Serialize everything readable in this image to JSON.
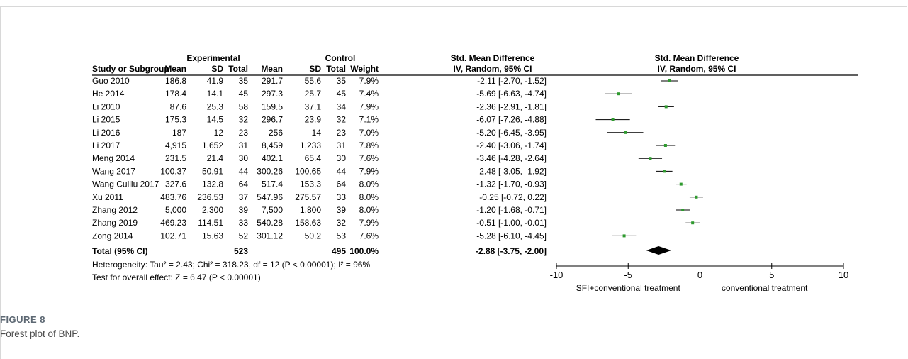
{
  "headers": {
    "group_experimental": "Experimental",
    "group_control": "Control",
    "smd_col_title": "Std. Mean Difference",
    "smd_col_sub": "IV, Random, 95% CI",
    "plot_title": "Std. Mean Difference",
    "plot_sub": "IV, Random, 95% CI",
    "study": "Study or Subgroup",
    "mean": "Mean",
    "sd": "SD",
    "total": "Total",
    "weight": "Weight"
  },
  "chart_data": {
    "type": "forest",
    "studies": [
      {
        "name": "Guo 2010",
        "e_mean": "186.8",
        "e_sd": "41.9",
        "e_total": "35",
        "c_mean": "291.7",
        "c_sd": "55.6",
        "c_total": "35",
        "weight": "7.9%",
        "ci_text": "-2.11 [-2.70, -1.52]",
        "smd": -2.11,
        "lower": -2.7,
        "upper": -1.52,
        "w": 7.9
      },
      {
        "name": "He 2014",
        "e_mean": "178.4",
        "e_sd": "14.1",
        "e_total": "45",
        "c_mean": "297.3",
        "c_sd": "25.7",
        "c_total": "45",
        "weight": "7.4%",
        "ci_text": "-5.69 [-6.63, -4.74]",
        "smd": -5.69,
        "lower": -6.63,
        "upper": -4.74,
        "w": 7.4
      },
      {
        "name": "Li 2010",
        "e_mean": "87.6",
        "e_sd": "25.3",
        "e_total": "58",
        "c_mean": "159.5",
        "c_sd": "37.1",
        "c_total": "34",
        "weight": "7.9%",
        "ci_text": "-2.36 [-2.91, -1.81]",
        "smd": -2.36,
        "lower": -2.91,
        "upper": -1.81,
        "w": 7.9
      },
      {
        "name": "Li 2015",
        "e_mean": "175.3",
        "e_sd": "14.5",
        "e_total": "32",
        "c_mean": "296.7",
        "c_sd": "23.9",
        "c_total": "32",
        "weight": "7.1%",
        "ci_text": "-6.07 [-7.26, -4.88]",
        "smd": -6.07,
        "lower": -7.26,
        "upper": -4.88,
        "w": 7.1
      },
      {
        "name": "Li 2016",
        "e_mean": "187",
        "e_sd": "12",
        "e_total": "23",
        "c_mean": "256",
        "c_sd": "14",
        "c_total": "23",
        "weight": "7.0%",
        "ci_text": "-5.20 [-6.45, -3.95]",
        "smd": -5.2,
        "lower": -6.45,
        "upper": -3.95,
        "w": 7.0
      },
      {
        "name": "Li 2017",
        "e_mean": "4,915",
        "e_sd": "1,652",
        "e_total": "31",
        "c_mean": "8,459",
        "c_sd": "1,233",
        "c_total": "31",
        "weight": "7.8%",
        "ci_text": "-2.40 [-3.06, -1.74]",
        "smd": -2.4,
        "lower": -3.06,
        "upper": -1.74,
        "w": 7.8
      },
      {
        "name": "Meng 2014",
        "e_mean": "231.5",
        "e_sd": "21.4",
        "e_total": "30",
        "c_mean": "402.1",
        "c_sd": "65.4",
        "c_total": "30",
        "weight": "7.6%",
        "ci_text": "-3.46 [-4.28, -2.64]",
        "smd": -3.46,
        "lower": -4.28,
        "upper": -2.64,
        "w": 7.6
      },
      {
        "name": "Wang 2017",
        "e_mean": "100.37",
        "e_sd": "50.91",
        "e_total": "44",
        "c_mean": "300.26",
        "c_sd": "100.65",
        "c_total": "44",
        "weight": "7.9%",
        "ci_text": "-2.48 [-3.05, -1.92]",
        "smd": -2.48,
        "lower": -3.05,
        "upper": -1.92,
        "w": 7.9
      },
      {
        "name": "Wang Cuiliu 2017",
        "e_mean": "327.6",
        "e_sd": "132.8",
        "e_total": "64",
        "c_mean": "517.4",
        "c_sd": "153.3",
        "c_total": "64",
        "weight": "8.0%",
        "ci_text": "-1.32 [-1.70, -0.93]",
        "smd": -1.32,
        "lower": -1.7,
        "upper": -0.93,
        "w": 8.0
      },
      {
        "name": "Xu 2011",
        "e_mean": "483.76",
        "e_sd": "236.53",
        "e_total": "37",
        "c_mean": "547.96",
        "c_sd": "275.57",
        "c_total": "33",
        "weight": "8.0%",
        "ci_text": "-0.25 [-0.72, 0.22]",
        "smd": -0.25,
        "lower": -0.72,
        "upper": 0.22,
        "w": 8.0
      },
      {
        "name": "Zhang 2012",
        "e_mean": "5,000",
        "e_sd": "2,300",
        "e_total": "39",
        "c_mean": "7,500",
        "c_sd": "1,800",
        "c_total": "39",
        "weight": "8.0%",
        "ci_text": "-1.20 [-1.68, -0.71]",
        "smd": -1.2,
        "lower": -1.68,
        "upper": -0.71,
        "w": 8.0
      },
      {
        "name": "Zhang 2019",
        "e_mean": "469.23",
        "e_sd": "114.51",
        "e_total": "33",
        "c_mean": "540.28",
        "c_sd": "158.63",
        "c_total": "32",
        "weight": "7.9%",
        "ci_text": "-0.51 [-1.00, -0.01]",
        "smd": -0.51,
        "lower": -1.0,
        "upper": -0.01,
        "w": 7.9
      },
      {
        "name": "Zong 2014",
        "e_mean": "102.71",
        "e_sd": "15.63",
        "e_total": "52",
        "c_mean": "301.12",
        "c_sd": "50.2",
        "c_total": "53",
        "weight": "7.6%",
        "ci_text": "-5.28 [-6.10, -4.45]",
        "smd": -5.28,
        "lower": -6.1,
        "upper": -4.45,
        "w": 7.6
      }
    ],
    "total": {
      "name": "Total (95% CI)",
      "e_total": "523",
      "c_total": "495",
      "weight": "100.0%",
      "ci_text": "-2.88 [-3.75, -2.00]",
      "smd": -2.88,
      "lower": -3.75,
      "upper": -2.0
    },
    "heterogeneity": "Heterogeneity: Tau² = 2.43; Chi² = 318.23, df = 12 (P < 0.00001); I² = 96%",
    "overall_effect": "Test for overall effect: Z = 6.47 (P < 0.00001)",
    "xlim": [
      -10,
      10
    ],
    "xticks": [
      -10,
      -5,
      0,
      5,
      10
    ],
    "xtick_labels": [
      "-10",
      "-5",
      "0",
      "5",
      "10"
    ],
    "favours_left": "SFI+conventional treatment",
    "favours_right": "conventional treatment",
    "colors": {
      "point": "#2e9a2e",
      "diamond": "#000000",
      "line": "#000000"
    }
  },
  "caption": {
    "label": "FIGURE 8",
    "text": "Forest plot of BNP."
  }
}
